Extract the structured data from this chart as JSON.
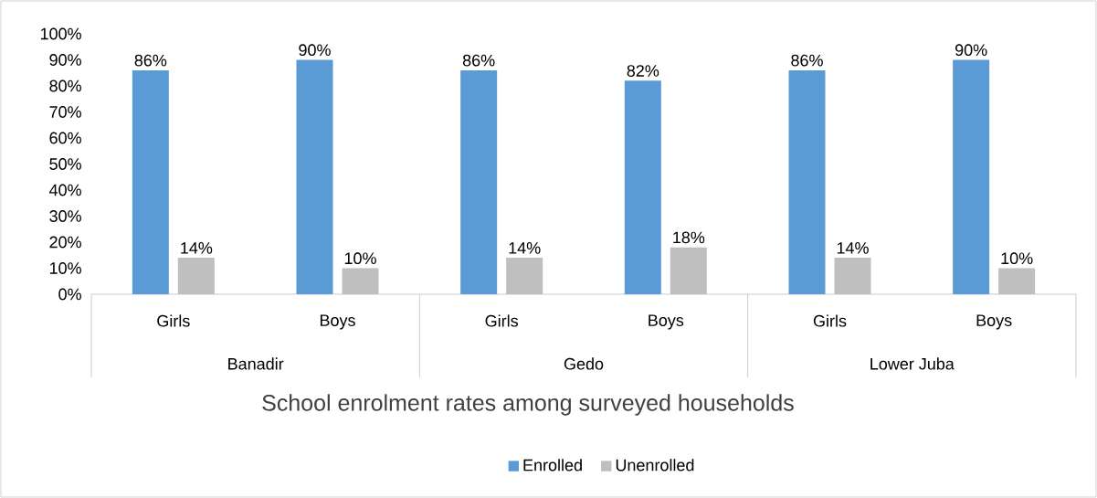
{
  "chart_data": {
    "type": "bar",
    "title": "School enrolment rates among surveyed households",
    "categories": [
      "Girls",
      "Boys",
      "Girls",
      "Boys",
      "Girls",
      "Boys"
    ],
    "annotations": [
      "Banadir",
      "Gedo",
      "Lower Juba"
    ],
    "series": [
      {
        "name": "Enrolled",
        "color": "#5b9bd5",
        "values": [
          86,
          90,
          86,
          82,
          86,
          90
        ],
        "value_labels": [
          "86%",
          "90%",
          "86%",
          "82%",
          "86%",
          "90%"
        ]
      },
      {
        "name": "Unenrolled",
        "color": "#bfbfbf",
        "values": [
          14,
          10,
          14,
          18,
          14,
          10
        ],
        "value_labels": [
          "14%",
          "10%",
          "14%",
          "18%",
          "14%",
          "10%"
        ]
      }
    ],
    "ylim": [
      0,
      100
    ],
    "yticks": [
      {
        "value": 0,
        "label": "0%"
      },
      {
        "value": 10,
        "label": "10%"
      },
      {
        "value": 20,
        "label": "20%"
      },
      {
        "value": 30,
        "label": "30%"
      },
      {
        "value": 40,
        "label": "40%"
      },
      {
        "value": 50,
        "label": "50%"
      },
      {
        "value": 60,
        "label": "60%"
      },
      {
        "value": 70,
        "label": "70%"
      },
      {
        "value": 80,
        "label": "80%"
      },
      {
        "value": 90,
        "label": "90%"
      },
      {
        "value": 100,
        "label": "100%"
      }
    ],
    "grid": false,
    "legend": "bottom"
  }
}
